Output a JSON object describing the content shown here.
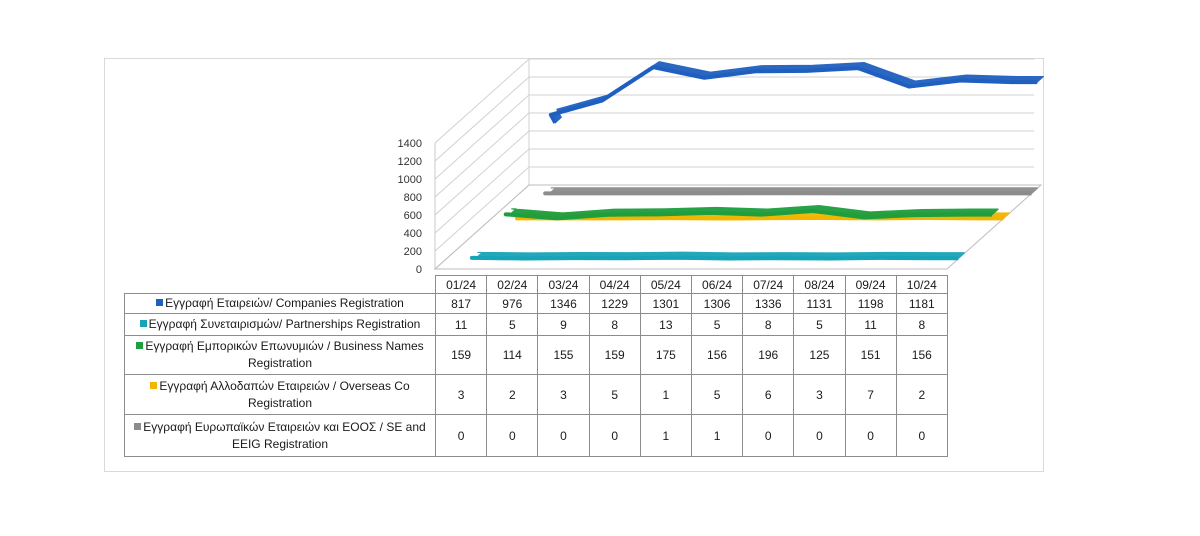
{
  "chart_data": {
    "type": "line",
    "categories": [
      "01/24",
      "02/24",
      "03/24",
      "04/24",
      "05/24",
      "06/24",
      "07/24",
      "08/24",
      "09/24",
      "10/24"
    ],
    "y_ticks": [
      "0",
      "200",
      "400",
      "600",
      "800",
      "1000",
      "1200",
      "1400"
    ],
    "ylim": [
      0,
      1400
    ],
    "grid": true,
    "series": [
      {
        "name": "Εγγραφή  Εταιρειών/ Companies Registration",
        "color": "#1f5fbf",
        "values": [
          817,
          976,
          1346,
          1229,
          1301,
          1306,
          1336,
          1131,
          1198,
          1181
        ]
      },
      {
        "name": "Εγγραφή  Συνεταιρισμών/ Partnerships Registration",
        "color": "#17a3b8",
        "values": [
          11,
          5,
          9,
          8,
          13,
          5,
          8,
          5,
          11,
          8
        ]
      },
      {
        "name": "Εγγραφή  Εμπορικών  Επωνυμιών  / Business Names Registration",
        "color": "#1e9e3e",
        "values": [
          159,
          114,
          155,
          159,
          175,
          156,
          196,
          125,
          151,
          156
        ]
      },
      {
        "name": "Εγγραφή  Αλλοδαπών  Εταιρειών  / Overseas Co Registration",
        "color": "#f2b600",
        "values": [
          3,
          2,
          3,
          5,
          1,
          5,
          6,
          3,
          7,
          2
        ]
      },
      {
        "name": "Εγγραφή  Ευρωπαϊκών Εταιρειών και ΕΟΟΣ / SE and EEIG Registration",
        "color": "#8c8c8c",
        "values": [
          0,
          0,
          0,
          0,
          1,
          1,
          0,
          0,
          0,
          0
        ]
      }
    ]
  }
}
